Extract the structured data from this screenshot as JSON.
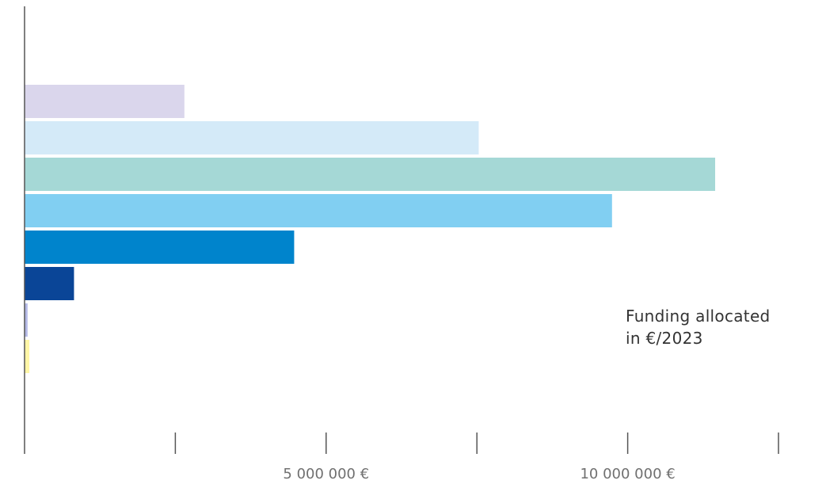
{
  "chart_data": {
    "type": "bar",
    "orientation": "horizontal",
    "title": "",
    "xlabel": "",
    "ylabel": "",
    "xlim": [
      0,
      12500000
    ],
    "grid": false,
    "categories": [
      "",
      "",
      "",
      "",
      "",
      "",
      "",
      ""
    ],
    "values": [
      2650000,
      7530000,
      11450000,
      9740000,
      4470000,
      820000,
      50000,
      80000
    ],
    "colors": [
      "#dad6ec",
      "#d4eaf8",
      "#a5d8d6",
      "#81cff2",
      "#0084cc",
      "#0a4597",
      "#b4b9e6",
      "#fff6a6"
    ],
    "ticks": [
      0,
      2500000,
      5000000,
      7500000,
      10000000,
      12500000
    ],
    "tick_labels": [
      {
        "value": 5000000,
        "text": "5 000 000 €"
      },
      {
        "value": 10000000,
        "text": "10 000 000 €"
      }
    ],
    "annotation": {
      "line1": "Funding allocated",
      "line2": "in €/2023"
    }
  }
}
